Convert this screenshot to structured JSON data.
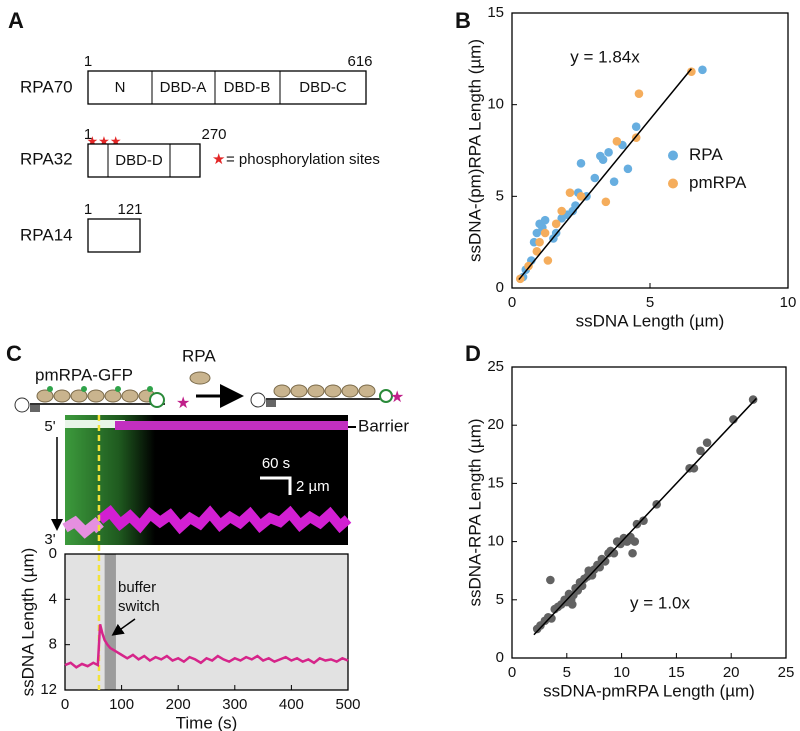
{
  "panels": {
    "a": {
      "label": "A",
      "proteins": [
        {
          "name": "RPA70",
          "start": 1,
          "end": 616,
          "domains": [
            "N",
            "DBD-A",
            "DBD-B",
            "DBD-C"
          ]
        },
        {
          "name": "RPA32",
          "start": 1,
          "end": 270,
          "domains": [
            "DBD-D"
          ]
        },
        {
          "name": "RPA14",
          "start": 1,
          "end": 121
        }
      ],
      "legend": "= phosphorylation sites"
    },
    "c": {
      "label": "C",
      "schematic": {
        "before": "pmRPA-GFP",
        "protein": "RPA"
      },
      "kymograph": {
        "top": "5'",
        "bottom": "3'",
        "barrier": "Barrier",
        "time_scale": "60 s",
        "length_scale": "2 µm"
      }
    }
  },
  "chart_data": [
    {
      "type": "scatter",
      "panel": "B",
      "x_label": "ssDNA Length (µm)",
      "y_label": "ssDNA-(pm)RPA Length (µm)",
      "annotation": "y = 1.84x",
      "xlim": [
        0,
        10
      ],
      "ylim": [
        0,
        15
      ],
      "xticks": [
        0,
        5,
        10
      ],
      "yticks": [
        0,
        5,
        10,
        15
      ],
      "legend": "right",
      "series": [
        {
          "name": "RPA",
          "color": "#67aee0",
          "x": [
            0.4,
            0.5,
            0.7,
            0.8,
            0.9,
            1.0,
            1.1,
            1.2,
            1.5,
            1.6,
            1.8,
            2.0,
            2.2,
            2.3,
            2.4,
            2.5,
            2.7,
            3.0,
            3.2,
            3.3,
            3.5,
            3.7,
            4.0,
            4.2,
            4.5,
            6.9
          ],
          "values": [
            0.6,
            1.0,
            1.5,
            2.5,
            3.0,
            3.5,
            3.3,
            3.7,
            2.7,
            3.0,
            3.8,
            4.0,
            4.2,
            4.5,
            5.2,
            6.8,
            5.0,
            6.0,
            7.2,
            7.0,
            7.4,
            5.8,
            7.8,
            6.5,
            8.8,
            11.9
          ]
        },
        {
          "name": "pmRPA",
          "color": "#f5ad5c",
          "x": [
            0.3,
            0.6,
            0.9,
            1.0,
            1.2,
            1.6,
            1.8,
            2.1,
            2.5,
            3.4,
            3.8,
            4.5,
            4.6,
            6.5,
            1.3
          ],
          "values": [
            0.5,
            1.2,
            2.0,
            2.5,
            3.0,
            3.5,
            4.2,
            5.2,
            5.0,
            4.7,
            8.0,
            8.2,
            10.6,
            11.8,
            1.5
          ]
        }
      ],
      "fit": {
        "color": "#000000",
        "x": [
          0.25,
          6.5
        ],
        "values": [
          0.46,
          11.96
        ]
      }
    },
    {
      "type": "line",
      "x_label": "Time (s)",
      "y_label": "ssDNA Length (µm)",
      "annotation": [
        "buffer",
        "switch"
      ],
      "xlim": [
        0,
        500
      ],
      "ylim": [
        0,
        12
      ],
      "y_inverted": true,
      "xticks": [
        0,
        100,
        200,
        300,
        400,
        500
      ],
      "yticks": [
        0,
        4,
        8,
        12
      ],
      "background": "#e2e2e2",
      "highlight": {
        "color": "#9c9c9c",
        "x": [
          70,
          90
        ]
      },
      "marker": {
        "color": "#f2e23a",
        "x": 60
      },
      "series": [
        {
          "color": "#d6258a",
          "x": [
            0,
            10,
            20,
            30,
            40,
            50,
            58,
            62,
            66,
            70,
            75,
            80,
            90,
            100,
            110,
            120,
            130,
            140,
            150,
            160,
            170,
            180,
            190,
            200,
            210,
            220,
            230,
            240,
            250,
            260,
            270,
            280,
            290,
            300,
            310,
            320,
            330,
            340,
            350,
            360,
            370,
            380,
            390,
            400,
            410,
            420,
            430,
            440,
            450,
            460,
            470,
            480,
            490,
            500
          ],
          "values": [
            9.8,
            9.6,
            10.0,
            9.7,
            9.9,
            9.6,
            9.8,
            6.2,
            7.0,
            7.6,
            8.0,
            8.3,
            8.6,
            8.9,
            9.2,
            8.9,
            9.3,
            9.0,
            9.4,
            9.1,
            9.3,
            9.0,
            9.4,
            9.2,
            9.5,
            9.1,
            9.3,
            9.6,
            9.2,
            9.4,
            9.0,
            9.3,
            9.5,
            9.2,
            9.4,
            9.1,
            9.3,
            9.0,
            9.4,
            9.2,
            9.5,
            9.3,
            9.1,
            9.4,
            9.2,
            9.5,
            9.3,
            9.6,
            9.2,
            9.4,
            9.3,
            9.5,
            9.2,
            9.4
          ]
        }
      ]
    },
    {
      "type": "scatter",
      "panel": "D",
      "x_label": "ssDNA-pmRPA Length (µm)",
      "y_label": "ssDNA-RPA Length (µm)",
      "annotation": "y = 1.0x",
      "xlim": [
        0,
        25
      ],
      "ylim": [
        0,
        25
      ],
      "xticks": [
        0,
        5,
        10,
        15,
        20,
        25
      ],
      "yticks": [
        0,
        5,
        10,
        15,
        20,
        25
      ],
      "series": [
        {
          "color": "#626262",
          "x": [
            2.3,
            2.6,
            3.0,
            3.3,
            3.6,
            3.9,
            4.2,
            4.5,
            4.8,
            5.0,
            5.2,
            5.4,
            5.6,
            5.8,
            6.0,
            6.2,
            6.4,
            6.6,
            6.9,
            7.1,
            7.3,
            7.5,
            7.8,
            8.0,
            8.2,
            8.5,
            8.8,
            9.0,
            9.3,
            9.6,
            9.9,
            10.2,
            10.5,
            10.8,
            11.0,
            11.4,
            12.0,
            13.2,
            16.2,
            16.6,
            17.2,
            17.8,
            20.2,
            22.0,
            3.5,
            5.5,
            7.0,
            11.2
          ],
          "values": [
            2.5,
            2.8,
            3.2,
            3.5,
            3.4,
            4.2,
            4.4,
            4.6,
            5.0,
            4.8,
            5.5,
            5.0,
            5.4,
            6.0,
            5.8,
            6.5,
            6.2,
            6.8,
            7.0,
            7.3,
            7.1,
            7.6,
            8.0,
            7.8,
            8.5,
            8.3,
            9.0,
            9.2,
            9.0,
            10.0,
            9.8,
            10.3,
            10.0,
            10.4,
            9.0,
            11.5,
            11.8,
            13.2,
            16.3,
            16.3,
            17.8,
            18.5,
            20.5,
            22.2,
            6.7,
            4.6,
            7.5,
            10.0
          ]
        }
      ],
      "fit": {
        "color": "#000000",
        "x": [
          2,
          22.3
        ],
        "values": [
          2,
          22.3
        ]
      }
    }
  ]
}
